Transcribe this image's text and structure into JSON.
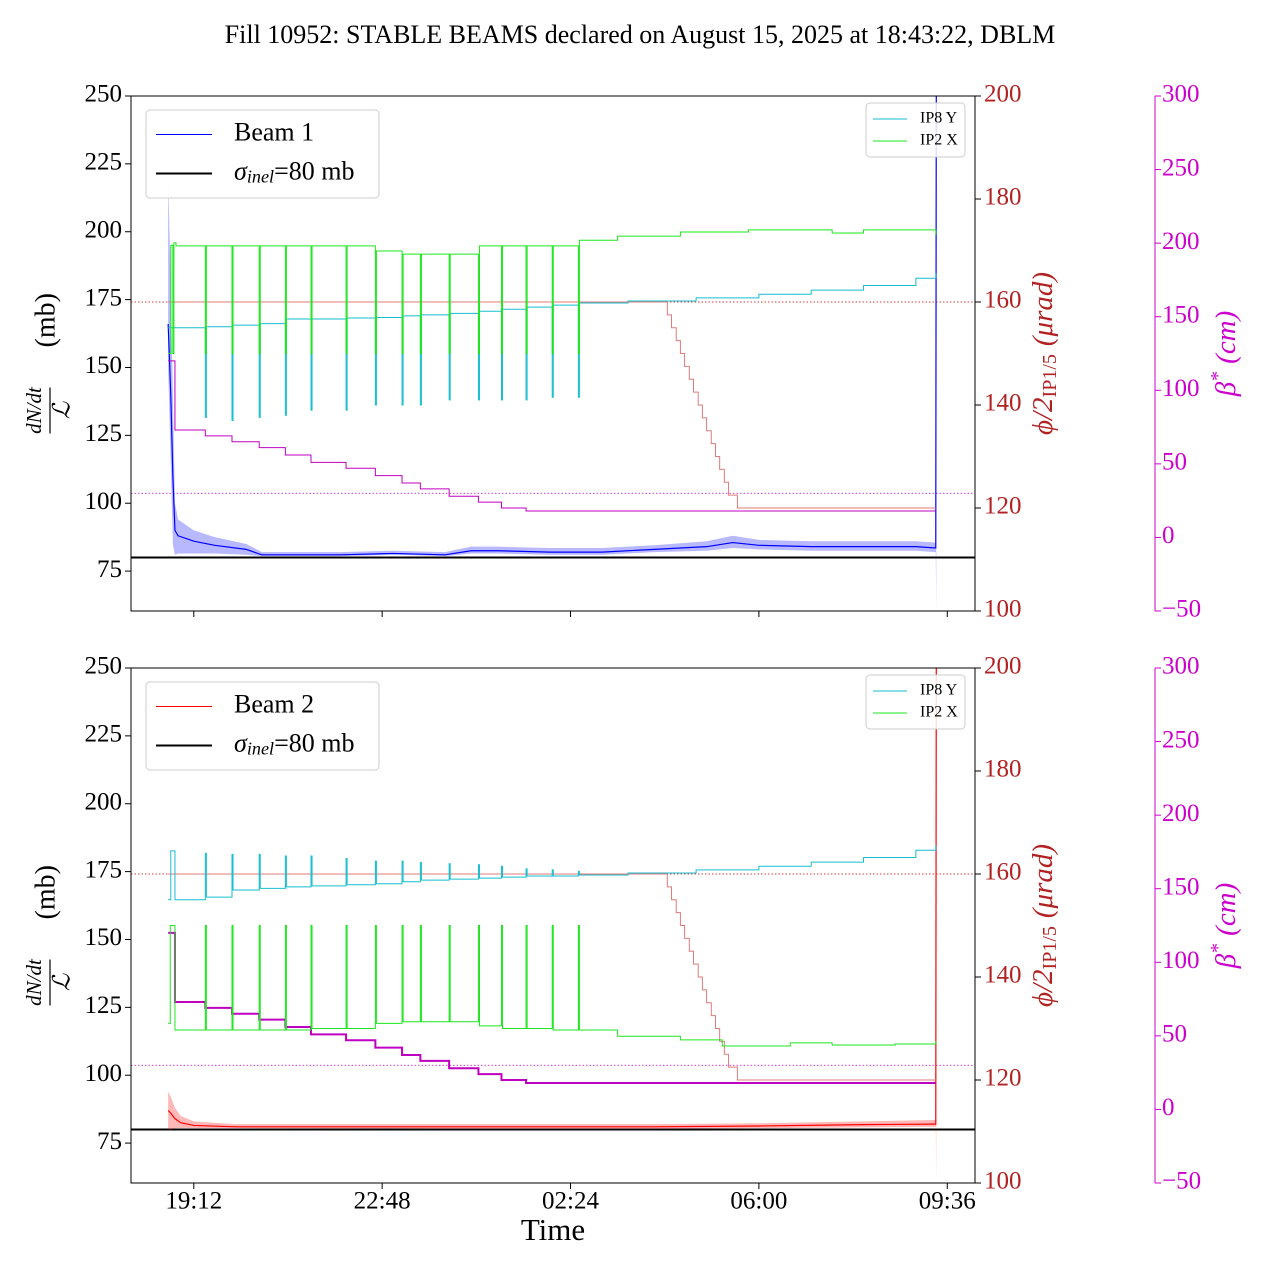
{
  "title": "Fill 10952: STABLE BEAMS declared on August 15, 2025 at 18:43:22, DBLM",
  "chart_data": [
    {
      "type": "line",
      "xlim": [
        18.0,
        34.13
      ],
      "xticks": [
        19.2,
        22.8,
        26.4,
        30,
        33.6
      ],
      "ylim": [
        60.3,
        250
      ],
      "yticks": [
        75,
        100,
        125,
        150,
        175,
        200,
        225,
        250
      ],
      "y2lim": [
        100,
        200
      ],
      "y2ticks": [
        100,
        120,
        140,
        160,
        180,
        200
      ],
      "y3lim": [
        -50,
        300
      ],
      "y3ticks": [
        {
          "value": -50,
          "label": "−50"
        },
        0,
        50,
        100,
        150,
        200,
        250,
        300
      ],
      "y2color": "#b22222",
      "y3color": "#cc00cc",
      "ylabel": {
        "numerator": "dN/dt",
        "denominator": "ℒ",
        "unit": "(mb)"
      },
      "y2label": {
        "main": "ϕ/2",
        "subscript": "IP1/5",
        "unit": "(μrad)"
      },
      "y3label": {
        "main": "β",
        "superscript": "*",
        "unit": "(cm)"
      },
      "legend_left": "upper left",
      "legend_right": "upper right",
      "hlines": [
        {
          "value": 80,
          "axis": "y",
          "color": "#000000",
          "style": "solid",
          "linewidth": 2,
          "label_symbol": "σ",
          "label_subscript": "inel",
          "label_rest": "=80 mb"
        },
        {
          "value": 160,
          "axis": "y2",
          "color": "#cc0000",
          "style": "dotted",
          "linewidth": 0.8
        },
        {
          "value": 30,
          "axis": "y3",
          "color": "#cc00cc",
          "style": "dotted",
          "linewidth": 0.8
        }
      ],
      "series": [
        {
          "name": "Beam 1",
          "axis": "y",
          "color": "#0000ff",
          "linewidth": 1.2,
          "step": false,
          "band_color": "#3333ff",
          "x": [
            18.71,
            18.76,
            18.8,
            18.84,
            18.9,
            19.2,
            19.6,
            20.2,
            20.5,
            21.0,
            22.0,
            23.0,
            24.0,
            24.5,
            25.0,
            26.0,
            27.0,
            28.0,
            29.0,
            29.5,
            30.0,
            31.0,
            32.0,
            33.0,
            33.38,
            33.39
          ],
          "values": [
            166,
            140,
            110,
            90,
            88,
            86,
            84.5,
            83,
            81,
            81,
            81,
            81.5,
            81,
            82.5,
            82.5,
            82,
            82,
            83,
            84,
            85.5,
            84.5,
            84,
            84,
            84,
            83.5,
            250
          ],
          "lower": [
            150,
            115,
            85,
            81,
            81.5,
            81.5,
            81.5,
            81,
            80.5,
            80.5,
            80.5,
            81,
            80.5,
            81.5,
            81.5,
            81,
            81,
            82,
            82.5,
            83.5,
            83,
            82.5,
            82.5,
            82.5,
            82,
            60.3
          ],
          "upper": [
            220,
            180,
            140,
            100,
            94,
            90,
            87.5,
            85,
            82,
            82,
            82,
            82.5,
            82,
            84,
            84,
            83.5,
            83.5,
            84.5,
            86,
            88,
            86.5,
            86,
            86,
            86,
            85.5,
            250
          ]
        },
        {
          "axis": "y2",
          "color": "#e07b7b",
          "linewidth": 1,
          "step": true,
          "x": [
            18.71,
            28.25,
            28.33,
            28.42,
            28.5,
            28.58,
            28.67,
            28.75,
            28.84,
            28.92,
            29.0,
            29.09,
            29.17,
            29.25,
            29.34,
            29.42,
            29.59,
            33.38
          ],
          "values": [
            160,
            157.5,
            155,
            152.5,
            150,
            147.5,
            145,
            142.5,
            140,
            137.5,
            135,
            132.5,
            130,
            127.5,
            125,
            122.5,
            120,
            120
          ]
        },
        {
          "axis": "y3",
          "color": "#c000c0",
          "linewidth": 1,
          "step": true,
          "x": [
            18.71,
            18.84,
            19.42,
            19.93,
            20.45,
            20.95,
            21.44,
            22.11,
            22.67,
            23.18,
            23.53,
            24.08,
            24.64,
            25.08,
            25.55,
            33.38
          ],
          "values": [
            120,
            73,
            69,
            65,
            61,
            56,
            51,
            47,
            42,
            37,
            33,
            28,
            24,
            20,
            18,
            18
          ]
        },
        {
          "name": "IP8 Y",
          "axis": "y2",
          "color": "#17becf",
          "linewidth": 1,
          "step": true,
          "x": [
            18.71,
            18.86,
            19.42,
            19.44,
            19.93,
            19.95,
            20.45,
            20.47,
            20.95,
            20.97,
            21.44,
            21.46,
            22.11,
            22.13,
            22.67,
            22.69,
            23.18,
            23.2,
            23.53,
            23.55,
            24.08,
            24.1,
            24.64,
            24.66,
            25.08,
            25.1,
            25.55,
            25.57,
            26.05,
            26.07,
            26.55,
            26.57,
            27.5,
            28.8,
            30,
            31,
            32,
            33,
            33.38
          ],
          "values": [
            155,
            155,
            137.6,
            155.2,
            137,
            155.5,
            137.6,
            155.8,
            138,
            156.7,
            139,
            156.7,
            139,
            156.9,
            140,
            157,
            140,
            157.3,
            140,
            157.5,
            141,
            157.8,
            141,
            158.2,
            141,
            158.6,
            141,
            159,
            141.5,
            159.4,
            141.5,
            159.8,
            160.2,
            160.8,
            161.5,
            162.3,
            163.2,
            164.6,
            165.6
          ]
        },
        {
          "name": "IP2 X",
          "axis": "y2",
          "color": "#1ee61e",
          "linewidth": 1,
          "step": true,
          "x": [
            18.71,
            18.76,
            18.8,
            18.82,
            18.86,
            19.42,
            19.44,
            19.93,
            19.95,
            20.45,
            20.47,
            20.95,
            20.97,
            21.44,
            21.46,
            22.11,
            22.13,
            22.67,
            22.69,
            23.18,
            23.2,
            23.53,
            23.55,
            24.08,
            24.1,
            24.64,
            24.66,
            25.08,
            25.1,
            25.55,
            25.57,
            26.05,
            26.07,
            26.55,
            26.57,
            27.3,
            28.5,
            29.8,
            31.4,
            32.0,
            33.38
          ],
          "values": [
            150,
            171,
            150,
            171.5,
            170.9,
            150,
            170.9,
            150,
            170.9,
            150,
            170.9,
            150,
            170.9,
            150,
            170.9,
            150,
            170.9,
            150,
            169.9,
            150,
            169.3,
            150,
            169.3,
            150,
            169.3,
            150,
            170.9,
            150,
            170.9,
            150,
            170.9,
            150,
            170.9,
            150,
            172,
            172.8,
            173.6,
            174,
            173.4,
            174,
            173
          ]
        }
      ]
    },
    {
      "type": "line",
      "xlabel": "Time",
      "xlim": [
        18.0,
        34.13
      ],
      "xticks": [
        {
          "value": 19.2,
          "label": "19:12"
        },
        {
          "value": 22.8,
          "label": "22:48"
        },
        {
          "value": 26.4,
          "label": "02:24"
        },
        {
          "value": 30,
          "label": "06:00"
        },
        {
          "value": 33.6,
          "label": "09:36"
        }
      ],
      "ylim": [
        60.3,
        250
      ],
      "yticks": [
        75,
        100,
        125,
        150,
        175,
        200,
        225,
        250
      ],
      "y2lim": [
        100,
        200
      ],
      "y2ticks": [
        100,
        120,
        140,
        160,
        180,
        200
      ],
      "y3lim": [
        -50,
        300
      ],
      "y3ticks": [
        {
          "value": -50,
          "label": "−50"
        },
        0,
        50,
        100,
        150,
        200,
        250,
        300
      ],
      "y2color": "#b22222",
      "y3color": "#cc00cc",
      "ylabel": {
        "numerator": "dN/dt",
        "denominator": "ℒ",
        "unit": "(mb)"
      },
      "y2label": {
        "main": "ϕ/2",
        "subscript": "IP1/5",
        "unit": "(μrad)"
      },
      "y3label": {
        "main": "β",
        "superscript": "*",
        "unit": "(cm)"
      },
      "legend_left": "upper left",
      "legend_right": "upper right",
      "hlines": [
        {
          "value": 80,
          "axis": "y",
          "color": "#000000",
          "style": "solid",
          "linewidth": 2,
          "label_symbol": "σ",
          "label_subscript": "inel",
          "label_rest": "=80 mb"
        },
        {
          "value": 160,
          "axis": "y2",
          "color": "#cc0000",
          "style": "dotted",
          "linewidth": 0.8
        },
        {
          "value": 30,
          "axis": "y3",
          "color": "#cc00cc",
          "style": "dotted",
          "linewidth": 0.8
        }
      ],
      "series": [
        {
          "name": "Beam 2",
          "axis": "y",
          "color": "#ff0000",
          "linewidth": 1.2,
          "step": false,
          "band_color": "#ff3333",
          "x": [
            18.71,
            18.76,
            18.84,
            18.95,
            19.2,
            20.0,
            24.0,
            28.0,
            30.0,
            32.0,
            33.3,
            33.38,
            33.39
          ],
          "values": [
            87,
            86,
            84,
            82.5,
            81.5,
            81,
            81,
            81,
            81.3,
            81.8,
            82,
            82,
            250
          ],
          "lower": [
            80,
            80,
            80.5,
            80.5,
            80.5,
            80.5,
            80.3,
            80.3,
            80.5,
            80.8,
            81,
            81,
            60.3
          ],
          "upper": [
            94,
            92,
            88,
            85,
            83,
            82,
            82,
            82,
            82.3,
            83,
            83.5,
            83.5,
            250
          ]
        },
        {
          "axis": "y2",
          "color": "#e07b7b",
          "linewidth": 1,
          "step": true,
          "x": [
            18.71,
            28.25,
            28.33,
            28.42,
            28.5,
            28.58,
            28.67,
            28.75,
            28.84,
            28.92,
            29.0,
            29.09,
            29.17,
            29.25,
            29.34,
            29.42,
            29.59,
            33.38
          ],
          "values": [
            160,
            157.5,
            155,
            152.5,
            150,
            147.5,
            145,
            142.5,
            140,
            137.5,
            135,
            132.5,
            130,
            127.5,
            125,
            122.5,
            120,
            120
          ]
        },
        {
          "axis": "y3",
          "color": "#c000c0",
          "linewidth": 2,
          "step": true,
          "x": [
            18.71,
            18.84,
            19.42,
            19.93,
            20.45,
            20.95,
            21.44,
            22.11,
            22.67,
            23.18,
            23.53,
            24.08,
            24.64,
            25.08,
            25.55,
            33.38
          ],
          "values": [
            120,
            73,
            69,
            65,
            61,
            56,
            51,
            47,
            42,
            37,
            33,
            28,
            24,
            20,
            18,
            18
          ]
        },
        {
          "name": "IP8 Y",
          "axis": "y2",
          "color": "#17becf",
          "linewidth": 1,
          "step": true,
          "x": [
            18.71,
            18.76,
            18.84,
            19.42,
            19.44,
            19.93,
            19.95,
            20.45,
            20.47,
            20.95,
            20.97,
            21.44,
            21.46,
            22.11,
            22.13,
            22.67,
            22.69,
            23.18,
            23.2,
            23.53,
            23.55,
            24.08,
            24.1,
            24.64,
            24.66,
            25.08,
            25.1,
            25.55,
            25.57,
            26.05,
            26.07,
            26.55,
            26.57,
            27.5,
            28.8,
            30,
            31,
            32,
            33,
            33.38
          ],
          "values": [
            155,
            164.5,
            155,
            164,
            155.5,
            163.8,
            156.9,
            163.8,
            157.2,
            163.5,
            157.5,
            163.5,
            157.7,
            163,
            157.9,
            162.5,
            158.1,
            162.5,
            158.5,
            162.2,
            158.8,
            162,
            159,
            161.8,
            159.2,
            161.5,
            159.4,
            161,
            159.6,
            160.8,
            159.6,
            160.5,
            159.8,
            160.2,
            160.8,
            161.5,
            162.3,
            163.2,
            164.6,
            165.6
          ]
        },
        {
          "name": "IP2 X",
          "axis": "y2",
          "color": "#1ee61e",
          "linewidth": 1,
          "step": true,
          "x": [
            18.71,
            18.75,
            18.84,
            19.42,
            19.44,
            19.93,
            19.95,
            20.45,
            20.47,
            20.95,
            20.97,
            21.44,
            21.46,
            22.11,
            22.13,
            22.67,
            22.69,
            23.18,
            23.2,
            23.53,
            23.55,
            24.08,
            24.1,
            24.64,
            24.66,
            25.08,
            25.1,
            25.55,
            25.57,
            26.05,
            26.07,
            26.55,
            26.57,
            27.3,
            28.5,
            29.3,
            30.6,
            31.4,
            32.6,
            33.38
          ],
          "values": [
            131,
            150,
            129.7,
            150,
            129.7,
            150,
            129.7,
            150,
            129.7,
            150,
            129.7,
            150,
            130,
            150,
            130,
            150,
            131,
            150,
            131.3,
            150,
            131.3,
            150,
            131.3,
            150,
            130.5,
            150,
            130,
            150,
            130,
            150,
            129.7,
            150,
            129.7,
            128.5,
            127.8,
            126.6,
            127.2,
            126.8,
            127,
            127.6
          ]
        }
      ]
    }
  ]
}
